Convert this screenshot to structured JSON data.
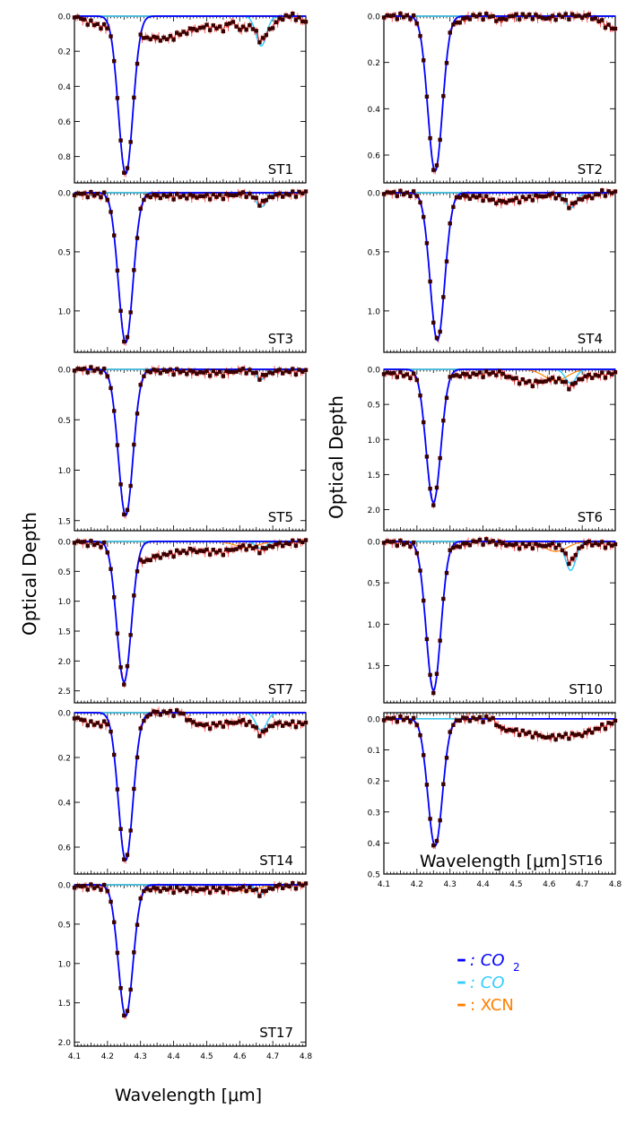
{
  "figure": {
    "ylabel": "Optical Depth",
    "xlabel": "Wavelength [μm]",
    "legend": [
      {
        "symbol": "–",
        "text": ": CO",
        "sub": "2",
        "color": "#0000ff"
      },
      {
        "symbol": "–",
        "text": ": CO",
        "sub": "",
        "color": "#33ccff"
      },
      {
        "symbol": "–",
        "text": ": XCN",
        "sub": "",
        "color": "#ff8000"
      }
    ]
  },
  "chart_data": [
    {
      "id": "ST1",
      "type": "line",
      "label": "ST1",
      "xlim": [
        4.1,
        4.8
      ],
      "ylim": [
        0.0,
        0.95
      ],
      "ytick_values": [
        0.0,
        0.2,
        0.4,
        0.6,
        0.8
      ],
      "ytick_labels": [
        "0.0",
        "0.2",
        "0.4",
        "0.6",
        "0.8"
      ],
      "co2_peak": 0.9,
      "co2_center": 4.255,
      "co": 0.17,
      "xcn": 0.0,
      "continuum": [
        [
          4.1,
          0.0
        ],
        [
          4.15,
          0.04
        ],
        [
          4.3,
          0.12
        ],
        [
          4.38,
          0.13
        ],
        [
          4.45,
          0.08
        ],
        [
          4.5,
          0.06
        ],
        [
          4.55,
          0.07
        ],
        [
          4.58,
          0.03
        ],
        [
          4.6,
          0.08
        ],
        [
          4.65,
          0.03
        ],
        [
          4.7,
          0.05
        ],
        [
          4.75,
          -0.02
        ],
        [
          4.8,
          0.04
        ]
      ]
    },
    {
      "id": "ST2",
      "type": "line",
      "label": "ST2",
      "xlim": [
        4.1,
        4.8
      ],
      "ylim": [
        0.0,
        0.72
      ],
      "ytick_values": [
        0.0,
        0.2,
        0.4,
        0.6
      ],
      "ytick_labels": [
        "0.0",
        "0.2",
        "0.4",
        "0.6"
      ],
      "co2_peak": 0.67,
      "co2_center": 4.255,
      "co": 0.0,
      "xcn": 0.0,
      "continuum": [
        [
          4.1,
          0.0
        ],
        [
          4.2,
          0.0
        ],
        [
          4.3,
          0.04
        ],
        [
          4.4,
          -0.02
        ],
        [
          4.45,
          0.02
        ],
        [
          4.5,
          -0.01
        ],
        [
          4.6,
          0.01
        ],
        [
          4.7,
          -0.02
        ],
        [
          4.8,
          0.06
        ]
      ]
    },
    {
      "id": "ST3",
      "type": "line",
      "label": "ST3",
      "xlim": [
        4.1,
        4.8
      ],
      "ylim": [
        0.0,
        1.35
      ],
      "ytick_values": [
        0.0,
        0.5,
        1.0
      ],
      "ytick_labels": [
        "0.0",
        "0.5",
        "1.0"
      ],
      "co2_peak": 1.27,
      "co2_center": 4.255,
      "co": 0.12,
      "xcn": 0.0,
      "continuum": [
        [
          4.1,
          0.01
        ],
        [
          4.2,
          0.02
        ],
        [
          4.4,
          0.03
        ],
        [
          4.55,
          0.03
        ],
        [
          4.6,
          0.01
        ],
        [
          4.72,
          0.02
        ],
        [
          4.8,
          0.0
        ]
      ]
    },
    {
      "id": "ST4",
      "type": "line",
      "label": "ST4",
      "xlim": [
        4.1,
        4.8
      ],
      "ylim": [
        0.0,
        1.35
      ],
      "ytick_values": [
        0.0,
        0.5,
        1.0
      ],
      "ytick_labels": [
        "0.0",
        "0.5",
        "1.0"
      ],
      "co2_peak": 1.25,
      "co2_center": 4.262,
      "co": 0.13,
      "xcn": 0.0,
      "continuum": [
        [
          4.1,
          0.0
        ],
        [
          4.2,
          0.01
        ],
        [
          4.4,
          0.04
        ],
        [
          4.45,
          0.08
        ],
        [
          4.55,
          0.04
        ],
        [
          4.6,
          0.02
        ],
        [
          4.72,
          0.04
        ],
        [
          4.8,
          -0.04
        ]
      ]
    },
    {
      "id": "ST5",
      "type": "line",
      "label": "ST5",
      "xlim": [
        4.1,
        4.8
      ],
      "ylim": [
        0.0,
        1.6
      ],
      "ytick_values": [
        0.0,
        0.5,
        1.0,
        1.5
      ],
      "ytick_labels": [
        "0.0",
        "0.5",
        "1.0",
        "1.5"
      ],
      "co2_peak": 1.45,
      "co2_center": 4.255,
      "co": 0.1,
      "xcn": 0.0,
      "continuum": [
        [
          4.1,
          0.0
        ],
        [
          4.4,
          0.02
        ],
        [
          4.55,
          0.04
        ],
        [
          4.6,
          0.01
        ],
        [
          4.72,
          0.02
        ],
        [
          4.8,
          0.02
        ]
      ]
    },
    {
      "id": "ST6",
      "type": "line",
      "label": "ST6",
      "xlim": [
        4.1,
        4.8
      ],
      "ylim": [
        0.0,
        2.3
      ],
      "ytick_values": [
        0.0,
        0.5,
        1.0,
        1.5,
        2.0
      ],
      "ytick_labels": [
        "0.0",
        "0.5",
        "1.0",
        "1.5",
        "2.0"
      ],
      "co2_peak": 1.9,
      "co2_center": 4.25,
      "co": 0.2,
      "xcn": 0.16,
      "continuum": [
        [
          4.1,
          0.05
        ],
        [
          4.2,
          0.1
        ],
        [
          4.35,
          0.08
        ],
        [
          4.45,
          0.05
        ],
        [
          4.5,
          0.15
        ],
        [
          4.55,
          0.2
        ],
        [
          4.6,
          0.15
        ],
        [
          4.72,
          0.1
        ],
        [
          4.8,
          0.06
        ]
      ]
    },
    {
      "id": "ST7",
      "type": "line",
      "label": "ST7",
      "xlim": [
        4.1,
        4.8
      ],
      "ylim": [
        0.0,
        2.7
      ],
      "ytick_values": [
        0.0,
        0.5,
        1.0,
        1.5,
        2.0,
        2.5
      ],
      "ytick_labels": [
        "0.0",
        "0.5",
        "1.0",
        "1.5",
        "2.0",
        "2.5"
      ],
      "co2_peak": 2.35,
      "co2_center": 4.25,
      "co": 0.12,
      "xcn": 0.1,
      "continuum": [
        [
          4.1,
          0.0
        ],
        [
          4.25,
          0.1
        ],
        [
          4.3,
          0.35
        ],
        [
          4.35,
          0.25
        ],
        [
          4.45,
          0.15
        ],
        [
          4.55,
          0.18
        ],
        [
          4.6,
          0.1
        ],
        [
          4.72,
          0.05
        ],
        [
          4.8,
          0.0
        ]
      ]
    },
    {
      "id": "ST10",
      "type": "line",
      "label": "ST10",
      "xlim": [
        4.1,
        4.8
      ],
      "ylim": [
        0.0,
        1.95
      ],
      "ytick_values": [
        0.0,
        0.5,
        1.0,
        1.5
      ],
      "ytick_labels": [
        "0.0",
        "0.5",
        "1.0",
        "1.5"
      ],
      "co2_peak": 1.8,
      "co2_center": 4.25,
      "co": 0.35,
      "xcn": 0.12,
      "continuum": [
        [
          4.1,
          0.0
        ],
        [
          4.3,
          0.08
        ],
        [
          4.4,
          -0.02
        ],
        [
          4.45,
          0.02
        ],
        [
          4.5,
          0.05
        ],
        [
          4.58,
          0.05
        ],
        [
          4.72,
          0.02
        ],
        [
          4.8,
          0.05
        ]
      ]
    },
    {
      "id": "ST14",
      "type": "line",
      "label": "ST14",
      "xlim": [
        4.1,
        4.8
      ],
      "ylim": [
        0.0,
        0.72
      ],
      "ytick_values": [
        0.0,
        0.2,
        0.4,
        0.6
      ],
      "ytick_labels": [
        "0.0",
        "0.2",
        "0.4",
        "0.6"
      ],
      "co2_peak": 0.66,
      "co2_center": 4.255,
      "co": 0.08,
      "xcn": 0.0,
      "continuum": [
        [
          4.1,
          0.02
        ],
        [
          4.15,
          0.05
        ],
        [
          4.3,
          0.05
        ],
        [
          4.35,
          -0.03
        ],
        [
          4.4,
          -0.04
        ],
        [
          4.45,
          0.04
        ],
        [
          4.5,
          0.06
        ],
        [
          4.6,
          0.04
        ],
        [
          4.72,
          0.05
        ],
        [
          4.8,
          0.05
        ]
      ]
    },
    {
      "id": "ST16",
      "type": "line",
      "label": "ST16",
      "xlim": [
        4.1,
        4.8
      ],
      "ylim": [
        -0.02,
        0.5
      ],
      "ytick_values": [
        0.0,
        0.1,
        0.2,
        0.3,
        0.4,
        0.5
      ],
      "ytick_labels": [
        "0.0",
        "0.1",
        "0.2",
        "0.3",
        "0.4",
        "0.5"
      ],
      "co2_peak": 0.41,
      "co2_center": 4.255,
      "co": 0.0,
      "xcn": 0.0,
      "continuum": [
        [
          4.1,
          0.0
        ],
        [
          4.3,
          -0.01
        ],
        [
          4.35,
          -0.03
        ],
        [
          4.42,
          -0.02
        ],
        [
          4.45,
          0.03
        ],
        [
          4.55,
          0.05
        ],
        [
          4.6,
          0.06
        ],
        [
          4.7,
          0.05
        ],
        [
          4.75,
          0.03
        ],
        [
          4.8,
          0.01
        ]
      ]
    },
    {
      "id": "ST17",
      "type": "line",
      "label": "ST17",
      "xlim": [
        4.1,
        4.8
      ],
      "ylim": [
        0.0,
        2.05
      ],
      "ytick_values": [
        0.0,
        0.5,
        1.0,
        1.5,
        2.0
      ],
      "ytick_labels": [
        "0.0",
        "0.5",
        "1.0",
        "1.5",
        "2.0"
      ],
      "co2_peak": 1.67,
      "co2_center": 4.255,
      "co": 0.12,
      "xcn": 0.08,
      "continuum": [
        [
          4.1,
          0.02
        ],
        [
          4.3,
          0.05
        ],
        [
          4.4,
          0.06
        ],
        [
          4.55,
          0.06
        ],
        [
          4.6,
          0.05
        ],
        [
          4.72,
          0.02
        ],
        [
          4.8,
          0.0
        ]
      ]
    }
  ],
  "xaxis": {
    "ticks": [
      4.1,
      4.2,
      4.3,
      4.4,
      4.5,
      4.6,
      4.7,
      4.8
    ],
    "tick_labels": [
      "4.1",
      "4.2",
      "4.3",
      "4.4",
      "4.5",
      "4.6",
      "4.7",
      "4.8"
    ]
  },
  "colors": {
    "data": "#3a0000",
    "error": "#ff3030",
    "co2": "#0000ff",
    "co": "#33ccff",
    "xcn": "#ff8000",
    "baseline": "#000000"
  }
}
